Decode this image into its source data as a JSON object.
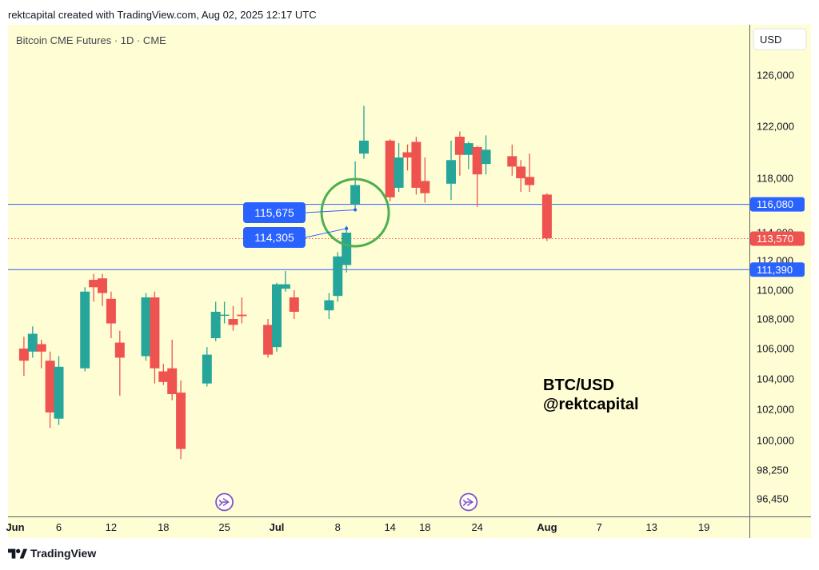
{
  "header": {
    "attribution": "rektcapital created with TradingView.com, Aug 02, 2025 12:17 UTC"
  },
  "symbol": {
    "info": "Bitcoin CME Futures · 1D · CME"
  },
  "currency_button": "USD",
  "overlay": {
    "line1": "BTC/USD",
    "line2": "@rektcapital"
  },
  "footer": {
    "brand": "TradingView"
  },
  "colors": {
    "background": "#fffdd4",
    "up": "#26a69a",
    "down": "#ef5350",
    "level_line": "#2962ff",
    "circle": "#4caf50",
    "event_icon": "#7e57c2"
  },
  "chart_data": {
    "type": "candlestick",
    "title": "Bitcoin CME Futures · 1D · CME",
    "ylim": [
      95500,
      127500
    ],
    "y_ticks": [
      {
        "label": "126,000",
        "value": 126000
      },
      {
        "label": "122,000",
        "value": 122000
      },
      {
        "label": "118,000",
        "value": 118000
      },
      {
        "label": "114,000",
        "value": 114000
      },
      {
        "label": "112,000",
        "value": 112000
      },
      {
        "label": "110,000",
        "value": 110000
      },
      {
        "label": "108,000",
        "value": 108000
      },
      {
        "label": "106,000",
        "value": 106000
      },
      {
        "label": "104,000",
        "value": 104000
      },
      {
        "label": "102,000",
        "value": 102000
      },
      {
        "label": "100,000",
        "value": 100000
      },
      {
        "label": "98,250",
        "value": 98250
      },
      {
        "label": "96,450",
        "value": 96450
      }
    ],
    "x_ticks": [
      {
        "label": "Jun",
        "day": 1,
        "bold": true
      },
      {
        "label": "6",
        "day": 6,
        "bold": false
      },
      {
        "label": "12",
        "day": 12,
        "bold": false
      },
      {
        "label": "18",
        "day": 18,
        "bold": false
      },
      {
        "label": "25",
        "day": 25,
        "bold": false
      },
      {
        "label": "Jul",
        "day": 31,
        "bold": true
      },
      {
        "label": "8",
        "day": 38,
        "bold": false
      },
      {
        "label": "14",
        "day": 44,
        "bold": false
      },
      {
        "label": "18",
        "day": 48,
        "bold": false
      },
      {
        "label": "24",
        "day": 54,
        "bold": false
      },
      {
        "label": "Aug",
        "day": 62,
        "bold": true
      },
      {
        "label": "7",
        "day": 68,
        "bold": false
      },
      {
        "label": "13",
        "day": 74,
        "bold": false
      },
      {
        "label": "19",
        "day": 80,
        "bold": false
      }
    ],
    "candles": [
      {
        "date": "Jun 2",
        "o": 106000,
        "h": 106800,
        "c": 105200,
        "l": 104200
      },
      {
        "date": "Jun 3",
        "o": 105800,
        "h": 107500,
        "c": 107000,
        "l": 105400
      },
      {
        "date": "Jun 4",
        "o": 106300,
        "h": 106600,
        "c": 105800,
        "l": 104700
      },
      {
        "date": "Jun 5",
        "o": 105200,
        "h": 105800,
        "c": 101800,
        "l": 100800
      },
      {
        "date": "Jun 6",
        "o": 101400,
        "h": 105500,
        "c": 104800,
        "l": 101000
      },
      {
        "date": "Jun 9",
        "o": 104700,
        "h": 110200,
        "c": 109900,
        "l": 104500
      },
      {
        "date": "Jun 10",
        "o": 110700,
        "h": 111100,
        "c": 110200,
        "l": 109200
      },
      {
        "date": "Jun 11",
        "o": 110800,
        "h": 111100,
        "c": 109800,
        "l": 108900
      },
      {
        "date": "Jun 12",
        "o": 109400,
        "h": 109900,
        "c": 107700,
        "l": 106700
      },
      {
        "date": "Jun 13",
        "o": 106400,
        "h": 107200,
        "c": 105400,
        "l": 102900
      },
      {
        "date": "Jun 16",
        "o": 105500,
        "h": 109800,
        "c": 109500,
        "l": 105200
      },
      {
        "date": "Jun 17",
        "o": 109500,
        "h": 109900,
        "c": 104700,
        "l": 103700
      },
      {
        "date": "Jun 18",
        "o": 104500,
        "h": 105000,
        "c": 103800,
        "l": 103600
      },
      {
        "date": "Jun 19",
        "o": 104700,
        "h": 106600,
        "c": 103000,
        "l": 102600
      },
      {
        "date": "Jun 20",
        "o": 103100,
        "h": 103900,
        "c": 99500,
        "l": 98900
      },
      {
        "date": "Jun 23",
        "o": 103700,
        "h": 106100,
        "c": 105600,
        "l": 103500
      },
      {
        "date": "Jun 24",
        "o": 106700,
        "h": 109200,
        "c": 108500,
        "l": 106500
      },
      {
        "date": "Jun 25",
        "o": 108300,
        "h": 109200,
        "c": 108300,
        "l": 107700
      },
      {
        "date": "Jun 26",
        "o": 108000,
        "h": 108900,
        "c": 107600,
        "l": 107200
      },
      {
        "date": "Jun 27",
        "o": 108300,
        "h": 109500,
        "c": 108200,
        "l": 107700
      },
      {
        "date": "Jun 30",
        "o": 107600,
        "h": 108000,
        "c": 105600,
        "l": 105400
      },
      {
        "date": "Jul 1",
        "o": 106100,
        "h": 110500,
        "c": 110400,
        "l": 105800
      },
      {
        "date": "Jul 2",
        "o": 110100,
        "h": 111300,
        "c": 110400,
        "l": 109900
      },
      {
        "date": "Jul 3",
        "o": 109500,
        "h": 110000,
        "c": 108500,
        "l": 108000
      },
      {
        "date": "Jul 7",
        "o": 108600,
        "h": 109800,
        "c": 109300,
        "l": 108000
      },
      {
        "date": "Jul 8",
        "o": 109600,
        "h": 112600,
        "c": 112300,
        "l": 109200
      },
      {
        "date": "Jul 9",
        "o": 111700,
        "h": 114500,
        "c": 114000,
        "l": 111200
      },
      {
        "date": "Jul 10",
        "o": 116100,
        "h": 119300,
        "c": 117500,
        "l": 115700
      },
      {
        "date": "Jul 11",
        "o": 119900,
        "h": 123600,
        "c": 120900,
        "l": 119500
      },
      {
        "date": "Jul 14",
        "o": 120900,
        "h": 121000,
        "c": 116600,
        "l": 116300
      },
      {
        "date": "Jul 15",
        "o": 117300,
        "h": 120700,
        "c": 119600,
        "l": 117000
      },
      {
        "date": "Jul 16",
        "o": 120000,
        "h": 120600,
        "c": 119600,
        "l": 118600
      },
      {
        "date": "Jul 17",
        "o": 120800,
        "h": 121200,
        "c": 117300,
        "l": 116800
      },
      {
        "date": "Jul 18",
        "o": 117800,
        "h": 119600,
        "c": 116900,
        "l": 116200
      },
      {
        "date": "Jul 21",
        "o": 117600,
        "h": 120900,
        "c": 119400,
        "l": 116400
      },
      {
        "date": "Jul 22",
        "o": 121200,
        "h": 121600,
        "c": 119800,
        "l": 118200
      },
      {
        "date": "Jul 23",
        "o": 119800,
        "h": 120800,
        "c": 120700,
        "l": 118700
      },
      {
        "date": "Jul 24",
        "o": 120400,
        "h": 120500,
        "c": 118300,
        "l": 115900
      },
      {
        "date": "Jul 25",
        "o": 119100,
        "h": 121300,
        "c": 120200,
        "l": 118300
      },
      {
        "date": "Jul 28",
        "o": 119700,
        "h": 120600,
        "c": 118900,
        "l": 118200
      },
      {
        "date": "Jul 29",
        "o": 118900,
        "h": 119400,
        "c": 118000,
        "l": 117000
      },
      {
        "date": "Jul 30",
        "o": 118100,
        "h": 119900,
        "c": 117500,
        "l": 117000
      },
      {
        "date": "Aug 1",
        "o": 116800,
        "h": 116900,
        "c": 113600,
        "l": 113400
      }
    ],
    "horizontal_lines": [
      {
        "value": 116080,
        "label": "116,080",
        "style": "solid"
      },
      {
        "value": 111390,
        "label": "111,390",
        "style": "solid"
      },
      {
        "value": 113570,
        "label": "113,570",
        "style": "dotted"
      }
    ],
    "callouts": [
      {
        "label": "115,675",
        "value": 115675,
        "target_date": "Jul 10"
      },
      {
        "label": "114,305",
        "value": 114305,
        "target_date": "Jul 9"
      }
    ],
    "annotations": [
      {
        "type": "circle",
        "around_date": "Jul 10",
        "value": 116000
      }
    ],
    "event_markers": [
      "Jun 25",
      "Jul 23"
    ]
  }
}
